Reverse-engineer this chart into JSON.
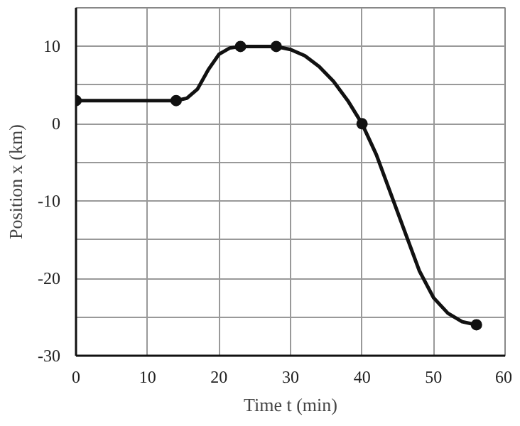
{
  "chart_data": {
    "type": "line",
    "xlabel": "Time t (min)",
    "ylabel": "Position x (km)",
    "xlim": [
      0,
      60
    ],
    "ylim": [
      -30,
      15
    ],
    "xticks": [
      0,
      10,
      20,
      30,
      40,
      50,
      60
    ],
    "yticks": [
      -30,
      {
        "value": -25,
        "label": null
      },
      -20,
      {
        "value": -15,
        "label": null
      },
      -10,
      {
        "value": -5,
        "label": null
      },
      0,
      {
        "value": 5,
        "label": null
      },
      10,
      {
        "value": 15,
        "label": null
      }
    ],
    "grid": true,
    "series": [
      {
        "color": "#111111",
        "marker": "none",
        "line_style": "solid",
        "x": [
          0,
          14,
          15.5,
          17,
          18.5,
          20,
          21.5,
          23,
          28,
          30,
          32,
          34,
          36,
          38,
          40,
          42,
          44,
          46,
          48,
          50,
          52,
          54,
          56
        ],
        "values": [
          3,
          3,
          3.3,
          4.5,
          7,
          9,
          9.8,
          10,
          10,
          9.6,
          8.8,
          7.4,
          5.5,
          3,
          0,
          -4,
          -9,
          -14,
          -19,
          -22.5,
          -24.5,
          -25.6,
          -26
        ]
      },
      {
        "type": "scatter",
        "color": "#111111",
        "marker": "circle",
        "x": [
          0,
          14,
          23,
          28,
          40,
          56
        ],
        "values": [
          3,
          3,
          10,
          10,
          0,
          -26
        ]
      }
    ]
  }
}
